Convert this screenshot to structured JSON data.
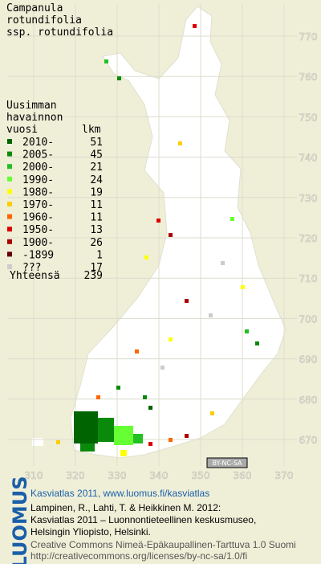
{
  "title": [
    "Campanula",
    "rotundifolia",
    "ssp. rotundifolia"
  ],
  "legend": {
    "heading": [
      "Uusimman",
      "havainnon"
    ],
    "col_year": "vuosi",
    "col_count": "lkm",
    "rows": [
      {
        "label": "2010-",
        "count": "51",
        "color": "#006400"
      },
      {
        "label": "2005-",
        "count": "45",
        "color": "#0a8a0a"
      },
      {
        "label": "2000-",
        "count": "21",
        "color": "#22c022"
      },
      {
        "label": "1990-",
        "count": "24",
        "color": "#66ff33"
      },
      {
        "label": "1980-",
        "count": "19",
        "color": "#ffff00"
      },
      {
        "label": "1970-",
        "count": "11",
        "color": "#ffcc00"
      },
      {
        "label": "1960-",
        "count": "11",
        "color": "#ff6600"
      },
      {
        "label": "1950-",
        "count": "13",
        "color": "#dd0000"
      },
      {
        "label": "1900-",
        "count": "26",
        "color": "#aa0000"
      },
      {
        "label": "-1899",
        "count": "1",
        "color": "#660000"
      },
      {
        "label": "???",
        "count": "17",
        "color": "#cccccc"
      }
    ],
    "total": {
      "label": "Yhteensä",
      "count": "239"
    }
  },
  "x_axis": [
    "310",
    "320",
    "330",
    "340",
    "350",
    "360",
    "370"
  ],
  "y_axis": [
    "770",
    "760",
    "750",
    "740",
    "730",
    "720",
    "710",
    "700",
    "690",
    "680",
    "670"
  ],
  "license_badge": "BY-NC-SA",
  "logo": "LUOMUS",
  "footer": {
    "link": "Kasviatlas 2011, www.luomus.fi/kasviatlas",
    "citation": [
      "Lampinen, R., Lahti, T. & Heikkinen M. 2012:",
      "Kasviatlas 2011 – Luonnontieteellinen keskusmuseo,",
      "Helsingin Yliopisto, Helsinki."
    ],
    "license": [
      "Creative Commons Nimeä-Epäkaupallinen-Tarttuva 1.0 Suomi",
      "http://creativecommons.org/licenses/by-nc-sa/1.0/fi"
    ]
  }
}
